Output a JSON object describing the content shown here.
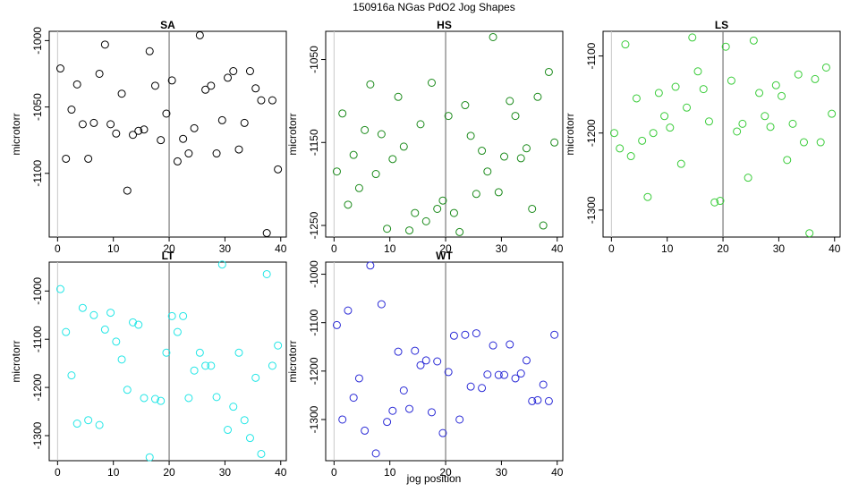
{
  "figure": {
    "title": "150916a   NGas PdO2 Jog Shapes",
    "xlabel": "jog position"
  },
  "chart_data": [
    {
      "type": "scatter",
      "title": "SA",
      "ylabel": "microtorr",
      "xlim": [
        -1.5,
        41
      ],
      "ylim": [
        -1148,
        -993
      ],
      "xticks": [
        0,
        10,
        20,
        30,
        40
      ],
      "yticks": [
        -1100,
        -1050,
        -1000
      ],
      "vline": 20,
      "color": "#000000",
      "points": [
        [
          0.5,
          -1021
        ],
        [
          1.5,
          -1089
        ],
        [
          2.5,
          -1052
        ],
        [
          3.5,
          -1033
        ],
        [
          4.5,
          -1063
        ],
        [
          5.5,
          -1089
        ],
        [
          6.5,
          -1062
        ],
        [
          7.5,
          -1025
        ],
        [
          8.5,
          -1003
        ],
        [
          9.5,
          -1063
        ],
        [
          10.5,
          -1070
        ],
        [
          11.5,
          -1040
        ],
        [
          12.5,
          -1113
        ],
        [
          13.5,
          -1071
        ],
        [
          14.5,
          -1068
        ],
        [
          15.5,
          -1067
        ],
        [
          16.5,
          -1008
        ],
        [
          17.5,
          -1034
        ],
        [
          18.5,
          -1075
        ],
        [
          19.5,
          -1055
        ],
        [
          20.5,
          -1030
        ],
        [
          21.5,
          -1091
        ],
        [
          22.5,
          -1074
        ],
        [
          23.5,
          -1085
        ],
        [
          24.5,
          -1066
        ],
        [
          25.5,
          -996
        ],
        [
          26.5,
          -1037
        ],
        [
          27.5,
          -1034
        ],
        [
          28.5,
          -1085
        ],
        [
          29.5,
          -1060
        ],
        [
          30.5,
          -1028
        ],
        [
          31.5,
          -1023
        ],
        [
          32.5,
          -1082
        ],
        [
          33.5,
          -1062
        ],
        [
          34.5,
          -1023
        ],
        [
          35.5,
          -1036
        ],
        [
          36.5,
          -1045
        ],
        [
          37.5,
          -1145
        ],
        [
          38.5,
          -1045
        ],
        [
          39.5,
          -1097
        ]
      ]
    },
    {
      "type": "scatter",
      "title": "HS",
      "ylabel": "microtorr",
      "xlim": [
        -1.5,
        41
      ],
      "ylim": [
        -1264,
        -1016
      ],
      "xticks": [
        0,
        10,
        20,
        30,
        40
      ],
      "yticks": [
        -1250,
        -1150,
        -1050
      ],
      "vline": 20,
      "color": "#1a8a1a",
      "points": [
        [
          0.5,
          -1185
        ],
        [
          1.5,
          -1115
        ],
        [
          2.5,
          -1225
        ],
        [
          3.5,
          -1165
        ],
        [
          4.5,
          -1205
        ],
        [
          5.5,
          -1135
        ],
        [
          6.5,
          -1080
        ],
        [
          7.5,
          -1188
        ],
        [
          8.5,
          -1140
        ],
        [
          9.5,
          -1254
        ],
        [
          10.5,
          -1170
        ],
        [
          11.5,
          -1095
        ],
        [
          12.5,
          -1155
        ],
        [
          13.5,
          -1256
        ],
        [
          14.5,
          -1235
        ],
        [
          15.5,
          -1128
        ],
        [
          16.5,
          -1245
        ],
        [
          17.5,
          -1078
        ],
        [
          18.5,
          -1230
        ],
        [
          19.5,
          -1220
        ],
        [
          20.5,
          -1118
        ],
        [
          21.5,
          -1235
        ],
        [
          22.5,
          -1258
        ],
        [
          23.5,
          -1105
        ],
        [
          24.5,
          -1142
        ],
        [
          25.5,
          -1212
        ],
        [
          26.5,
          -1160
        ],
        [
          27.5,
          -1185
        ],
        [
          28.5,
          -1023
        ],
        [
          29.5,
          -1210
        ],
        [
          30.5,
          -1167
        ],
        [
          31.5,
          -1100
        ],
        [
          32.5,
          -1118
        ],
        [
          33.5,
          -1169
        ],
        [
          34.5,
          -1157
        ],
        [
          35.5,
          -1230
        ],
        [
          36.5,
          -1095
        ],
        [
          37.5,
          -1250
        ],
        [
          38.5,
          -1065
        ],
        [
          39.5,
          -1150
        ]
      ]
    },
    {
      "type": "scatter",
      "title": "LS",
      "ylabel": "microtorr",
      "xlim": [
        -1.5,
        41
      ],
      "ylim": [
        -1335,
        -1068
      ],
      "xticks": [
        0,
        10,
        20,
        30,
        40
      ],
      "yticks": [
        -1300,
        -1200,
        -1100
      ],
      "vline": 20,
      "color": "#3acc3a",
      "points": [
        [
          0.5,
          -1200
        ],
        [
          1.5,
          -1220
        ],
        [
          2.5,
          -1085
        ],
        [
          3.5,
          -1230
        ],
        [
          4.5,
          -1155
        ],
        [
          5.5,
          -1210
        ],
        [
          6.5,
          -1283
        ],
        [
          7.5,
          -1200
        ],
        [
          8.5,
          -1148
        ],
        [
          9.5,
          -1178
        ],
        [
          10.5,
          -1193
        ],
        [
          11.5,
          -1140
        ],
        [
          12.5,
          -1240
        ],
        [
          13.5,
          -1167
        ],
        [
          14.5,
          -1076
        ],
        [
          15.5,
          -1120
        ],
        [
          16.5,
          -1143
        ],
        [
          17.5,
          -1185
        ],
        [
          18.5,
          -1290
        ],
        [
          19.5,
          -1288
        ],
        [
          20.5,
          -1088
        ],
        [
          21.5,
          -1132
        ],
        [
          22.5,
          -1198
        ],
        [
          23.5,
          -1188
        ],
        [
          24.5,
          -1258
        ],
        [
          25.5,
          -1080
        ],
        [
          26.5,
          -1148
        ],
        [
          27.5,
          -1178
        ],
        [
          28.5,
          -1192
        ],
        [
          29.5,
          -1138
        ],
        [
          30.5,
          -1152
        ],
        [
          31.5,
          -1235
        ],
        [
          32.5,
          -1188
        ],
        [
          33.5,
          -1124
        ],
        [
          34.5,
          -1212
        ],
        [
          35.5,
          -1330
        ],
        [
          36.5,
          -1130
        ],
        [
          37.5,
          -1212
        ],
        [
          38.5,
          -1115
        ],
        [
          39.5,
          -1175
        ]
      ]
    },
    {
      "type": "scatter",
      "title": "LT",
      "ylabel": "microtorr",
      "xlim": [
        -1.5,
        41
      ],
      "ylim": [
        -1352,
        -940
      ],
      "xticks": [
        0,
        10,
        20,
        30,
        40
      ],
      "yticks": [
        -1300,
        -1200,
        -1100,
        -1000
      ],
      "vline": 20,
      "color": "#22e6e6",
      "points": [
        [
          0.5,
          -996
        ],
        [
          1.5,
          -1085
        ],
        [
          2.5,
          -1175
        ],
        [
          3.5,
          -1275
        ],
        [
          4.5,
          -1035
        ],
        [
          5.5,
          -1268
        ],
        [
          6.5,
          -1050
        ],
        [
          7.5,
          -1278
        ],
        [
          8.5,
          -1080
        ],
        [
          9.5,
          -1045
        ],
        [
          10.5,
          -1105
        ],
        [
          11.5,
          -1142
        ],
        [
          12.5,
          -1205
        ],
        [
          13.5,
          -1065
        ],
        [
          14.5,
          -1070
        ],
        [
          15.5,
          -1222
        ],
        [
          16.5,
          -1345
        ],
        [
          17.5,
          -1224
        ],
        [
          18.5,
          -1228
        ],
        [
          19.5,
          -1128
        ],
        [
          20.5,
          -1052
        ],
        [
          21.5,
          -1085
        ],
        [
          22.5,
          -1052
        ],
        [
          23.5,
          -1222
        ],
        [
          24.5,
          -1165
        ],
        [
          25.5,
          -1128
        ],
        [
          26.5,
          -1155
        ],
        [
          27.5,
          -1155
        ],
        [
          28.5,
          -1220
        ],
        [
          29.5,
          -945
        ],
        [
          30.5,
          -1288
        ],
        [
          31.5,
          -1240
        ],
        [
          32.5,
          -1128
        ],
        [
          33.5,
          -1268
        ],
        [
          34.5,
          -1305
        ],
        [
          35.5,
          -1180
        ],
        [
          36.5,
          -1338
        ],
        [
          37.5,
          -965
        ],
        [
          38.5,
          -1155
        ],
        [
          39.5,
          -1113
        ]
      ]
    },
    {
      "type": "scatter",
      "title": "WT",
      "ylabel": "microtorr",
      "xlim": [
        -1.5,
        41
      ],
      "ylim": [
        -1385,
        -975
      ],
      "xticks": [
        0,
        10,
        20,
        30,
        40
      ],
      "yticks": [
        -1300,
        -1200,
        -1100,
        -1000
      ],
      "vline": 20,
      "color": "#2a2ad6",
      "points": [
        [
          0.5,
          -1105
        ],
        [
          1.5,
          -1300
        ],
        [
          2.5,
          -1075
        ],
        [
          3.5,
          -1255
        ],
        [
          4.5,
          -1215
        ],
        [
          5.5,
          -1323
        ],
        [
          6.5,
          -982
        ],
        [
          7.5,
          -1370
        ],
        [
          8.5,
          -1062
        ],
        [
          9.5,
          -1305
        ],
        [
          10.5,
          -1282
        ],
        [
          11.5,
          -1160
        ],
        [
          12.5,
          -1240
        ],
        [
          13.5,
          -1278
        ],
        [
          14.5,
          -1158
        ],
        [
          15.5,
          -1188
        ],
        [
          16.5,
          -1178
        ],
        [
          17.5,
          -1285
        ],
        [
          18.5,
          -1180
        ],
        [
          19.5,
          -1328
        ],
        [
          20.5,
          -1202
        ],
        [
          21.5,
          -1127
        ],
        [
          22.5,
          -1300
        ],
        [
          23.5,
          -1125
        ],
        [
          24.5,
          -1232
        ],
        [
          25.5,
          -1122
        ],
        [
          26.5,
          -1235
        ],
        [
          27.5,
          -1207
        ],
        [
          28.5,
          -1147
        ],
        [
          29.5,
          -1208
        ],
        [
          30.5,
          -1208
        ],
        [
          31.5,
          -1145
        ],
        [
          32.5,
          -1215
        ],
        [
          33.5,
          -1205
        ],
        [
          34.5,
          -1178
        ],
        [
          35.5,
          -1262
        ],
        [
          36.5,
          -1260
        ],
        [
          37.5,
          -1228
        ],
        [
          38.5,
          -1262
        ],
        [
          39.5,
          -1125
        ]
      ]
    }
  ]
}
